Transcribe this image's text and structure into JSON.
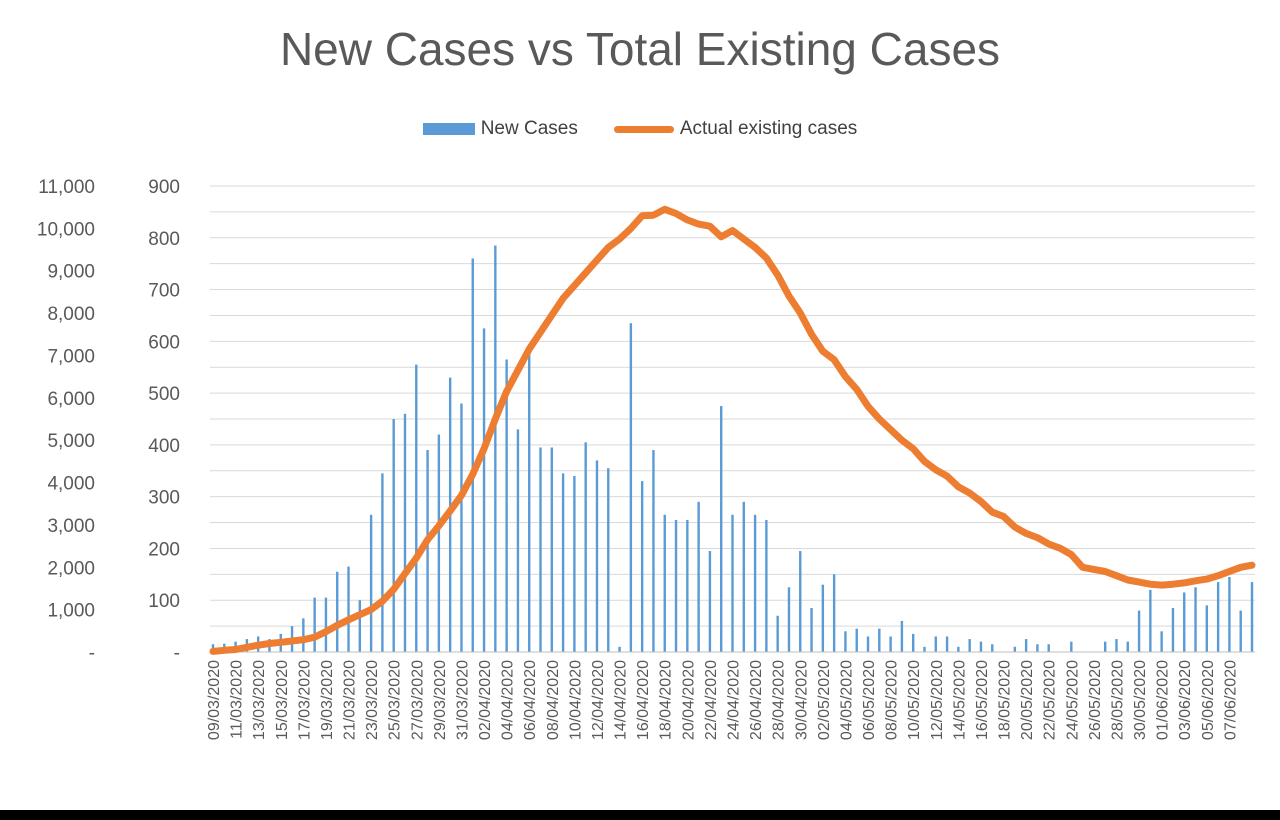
{
  "colors": {
    "bar": "#5b9bd5",
    "line": "#ed7d31",
    "grid": "#d9d9d9",
    "axis_text": "#595959"
  },
  "chart_data": {
    "type": "bar+line",
    "title": "New Cases vs Total Existing Cases",
    "legend": {
      "placement": "top",
      "items": [
        "New Cases",
        "Actual existing cases"
      ]
    },
    "grid": true,
    "x_tick_labels": [
      "09/03/2020",
      "11/03/2020",
      "13/03/2020",
      "15/03/2020",
      "17/03/2020",
      "19/03/2020",
      "21/03/2020",
      "23/03/2020",
      "25/03/2020",
      "27/03/2020",
      "29/03/2020",
      "31/03/2020",
      "02/04/2020",
      "04/04/2020",
      "06/04/2020",
      "08/04/2020",
      "10/04/2020",
      "12/04/2020",
      "14/04/2020",
      "16/04/2020",
      "18/04/2020",
      "20/04/2020",
      "22/04/2020",
      "24/04/2020",
      "26/04/2020",
      "28/04/2020",
      "30/04/2020",
      "02/05/2020",
      "04/05/2020",
      "06/05/2020",
      "08/05/2020",
      "10/05/2020",
      "12/05/2020",
      "14/05/2020",
      "16/05/2020",
      "18/05/2020",
      "20/05/2020",
      "22/05/2020",
      "24/05/2020",
      "26/05/2020",
      "28/05/2020",
      "30/05/2020",
      "01/06/2020",
      "03/06/2020",
      "05/06/2020",
      "07/06/2020"
    ],
    "y_left": {
      "ylim": [
        0,
        11000
      ],
      "tick_labels": [
        "-",
        "1,000",
        "2,000",
        "3,000",
        "4,000",
        "5,000",
        "6,000",
        "7,000",
        "8,000",
        "9,000",
        "10,000",
        "11,000"
      ],
      "series": "Actual existing cases"
    },
    "y_right": {
      "ylim": [
        0,
        900
      ],
      "tick_labels": [
        "-",
        "100",
        "200",
        "300",
        "400",
        "500",
        "600",
        "700",
        "800",
        "900"
      ],
      "series": "New Cases"
    },
    "series": [
      {
        "name": "New Cases",
        "type": "bar",
        "axis": "right",
        "values": [
          15,
          16,
          20,
          25,
          30,
          25,
          35,
          50,
          65,
          105,
          105,
          155,
          165,
          100,
          265,
          345,
          450,
          460,
          555,
          390,
          420,
          530,
          480,
          760,
          625,
          785,
          565,
          430,
          595,
          395,
          395,
          345,
          340,
          405,
          370,
          355,
          10,
          635,
          330,
          390,
          265,
          255,
          255,
          290,
          195,
          475,
          265,
          290,
          265,
          255,
          70,
          125,
          195,
          85,
          130,
          150,
          40,
          45,
          30,
          45,
          30,
          60,
          35,
          10,
          30,
          30,
          10,
          25,
          20,
          15,
          0,
          10,
          25,
          15,
          15,
          0,
          20,
          0,
          0,
          20,
          25,
          20,
          80,
          120,
          40,
          85,
          115,
          125,
          90,
          135,
          145,
          80,
          135
        ]
      },
      {
        "name": "Actual existing cases",
        "type": "line",
        "axis": "left",
        "values": [
          15,
          40,
          60,
          110,
          160,
          200,
          230,
          260,
          290,
          350,
          480,
          630,
          760,
          880,
          1000,
          1200,
          1480,
          1850,
          2220,
          2650,
          2980,
          3330,
          3700,
          4200,
          4800,
          5500,
          6150,
          6650,
          7150,
          7550,
          7950,
          8350,
          8650,
          8950,
          9250,
          9550,
          9750,
          10000,
          10300,
          10310,
          10450,
          10350,
          10200,
          10100,
          10050,
          9800,
          9950,
          9750,
          9550,
          9300,
          8900,
          8400,
          8000,
          7500,
          7100,
          6900,
          6500,
          6200,
          5800,
          5500,
          5250,
          5000,
          4800,
          4500,
          4300,
          4150,
          3900,
          3750,
          3550,
          3300,
          3200,
          2950,
          2800,
          2700,
          2550,
          2450,
          2300,
          2000,
          1950,
          1900,
          1800,
          1700,
          1650,
          1600,
          1580,
          1600,
          1630,
          1680,
          1720,
          1800,
          1900,
          2000,
          2050
        ]
      }
    ]
  }
}
